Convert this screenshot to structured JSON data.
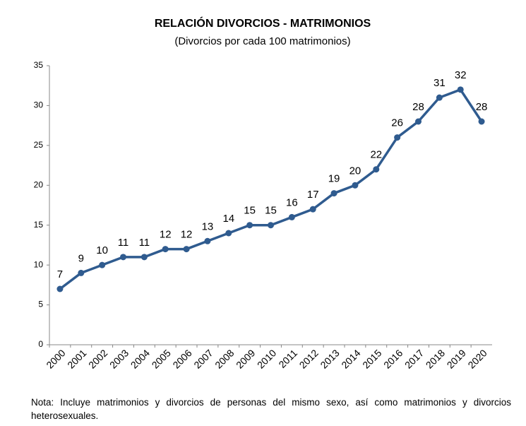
{
  "chart_data": {
    "type": "line",
    "title": "RELACIÓN DIVORCIOS - MATRIMONIOS",
    "subtitle": "(Divorcios por cada 100 matrimonios)",
    "categories": [
      "2000",
      "2001",
      "2002",
      "2003",
      "2004",
      "2005",
      "2006",
      "2007",
      "2008",
      "2009",
      "2010",
      "2011",
      "2012",
      "2013",
      "2014",
      "2015",
      "2016",
      "2017",
      "2018",
      "2019",
      "2020"
    ],
    "series": [
      {
        "name": "Divorcios por cada 100 matrimonios",
        "color": "#2f5b8f",
        "values": [
          7,
          9,
          10,
          11,
          11,
          12,
          12,
          13,
          14,
          15,
          15,
          16,
          17,
          19,
          20,
          22,
          26,
          28,
          31,
          32,
          28
        ]
      }
    ],
    "ylim": [
      0,
      35
    ],
    "yticks": [
      0,
      5,
      10,
      15,
      20,
      25,
      30,
      35
    ],
    "grid": false,
    "note": "Nota: Incluye matrimonios y divorcios de personas del mismo sexo, así como matrimonios y divorcios heterosexuales."
  }
}
